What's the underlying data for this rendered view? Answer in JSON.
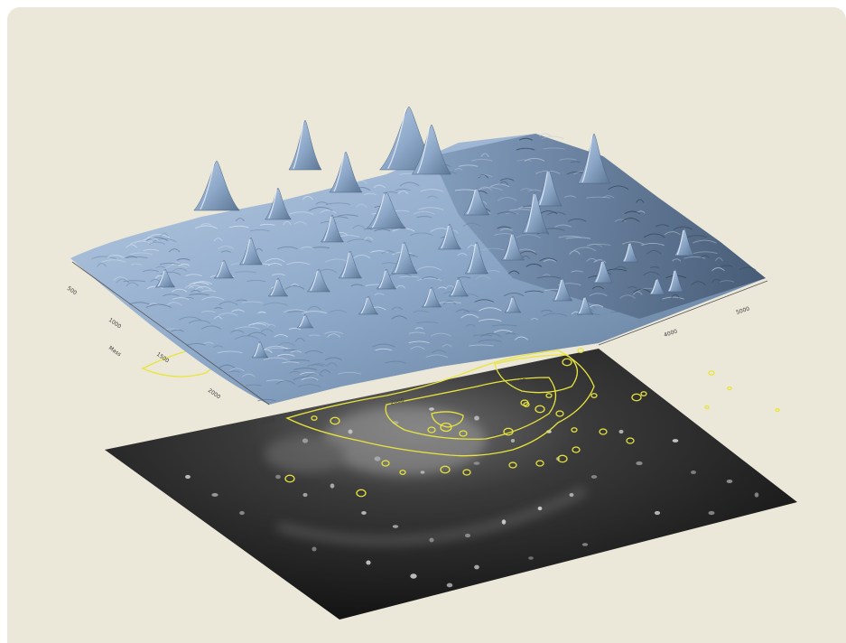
{
  "figure": {
    "description_type": "3D surface plot of 2D gel electrophoresis spot intensities above the gel image with yellow spot contours",
    "background_color": "#ece8d9",
    "surface_color": "#9fb8d6",
    "gel_color": "#1c1c1c",
    "contour_color": "#e8e43c"
  },
  "axes": {
    "left_ticks": [
      "500",
      "1000",
      "1500",
      "2000"
    ],
    "left_label": "Mass",
    "right_ticks": [
      "4000",
      "5000"
    ],
    "front_ticks": [
      "1000",
      "2000",
      "3000"
    ]
  }
}
